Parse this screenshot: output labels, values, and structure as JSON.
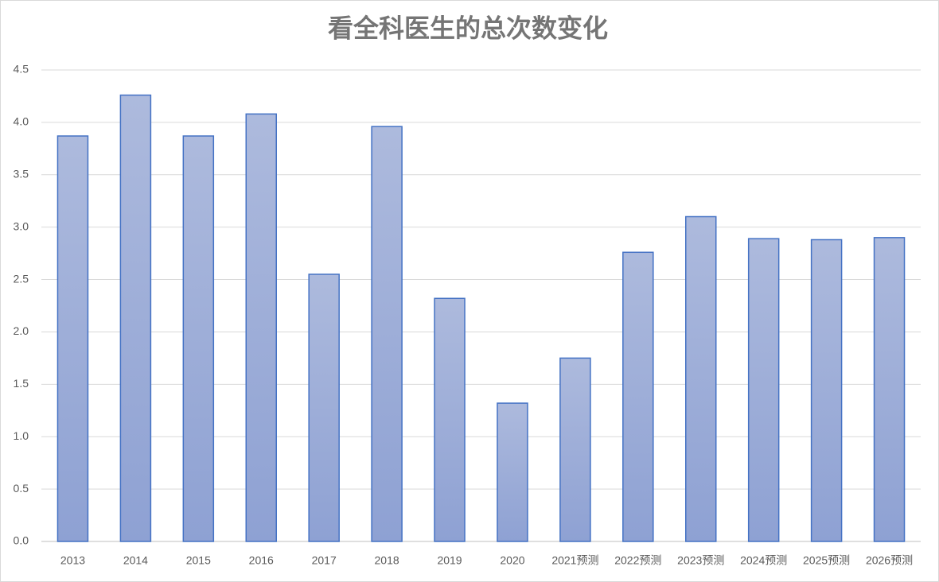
{
  "chart_data": {
    "type": "bar",
    "title": "看全科医生的总次数变化",
    "categories": [
      "2013",
      "2014",
      "2015",
      "2016",
      "2017",
      "2018",
      "2019",
      "2020",
      "2021预测",
      "2022预测",
      "2023预测",
      "2024预测",
      "2025预测",
      "2026预测"
    ],
    "values": [
      3.87,
      4.26,
      3.87,
      4.08,
      2.55,
      3.96,
      2.32,
      1.32,
      1.75,
      2.76,
      3.1,
      2.89,
      2.88,
      2.9
    ],
    "color": "#4472c4",
    "ylim": [
      0,
      4.5
    ],
    "yticks": [
      {
        "value": 0,
        "label": "0.0"
      },
      {
        "value": 0.5,
        "label": "0.5"
      },
      {
        "value": 1,
        "label": "1.0"
      },
      {
        "value": 1.5,
        "label": "1.5"
      },
      {
        "value": 2,
        "label": "2.0"
      },
      {
        "value": 2.5,
        "label": "2.5"
      },
      {
        "value": 3,
        "label": "3.0"
      },
      {
        "value": 3.5,
        "label": "3.5"
      },
      {
        "value": 4,
        "label": "4.0"
      },
      {
        "value": 4.5,
        "label": "4.5"
      }
    ],
    "grid": true
  }
}
